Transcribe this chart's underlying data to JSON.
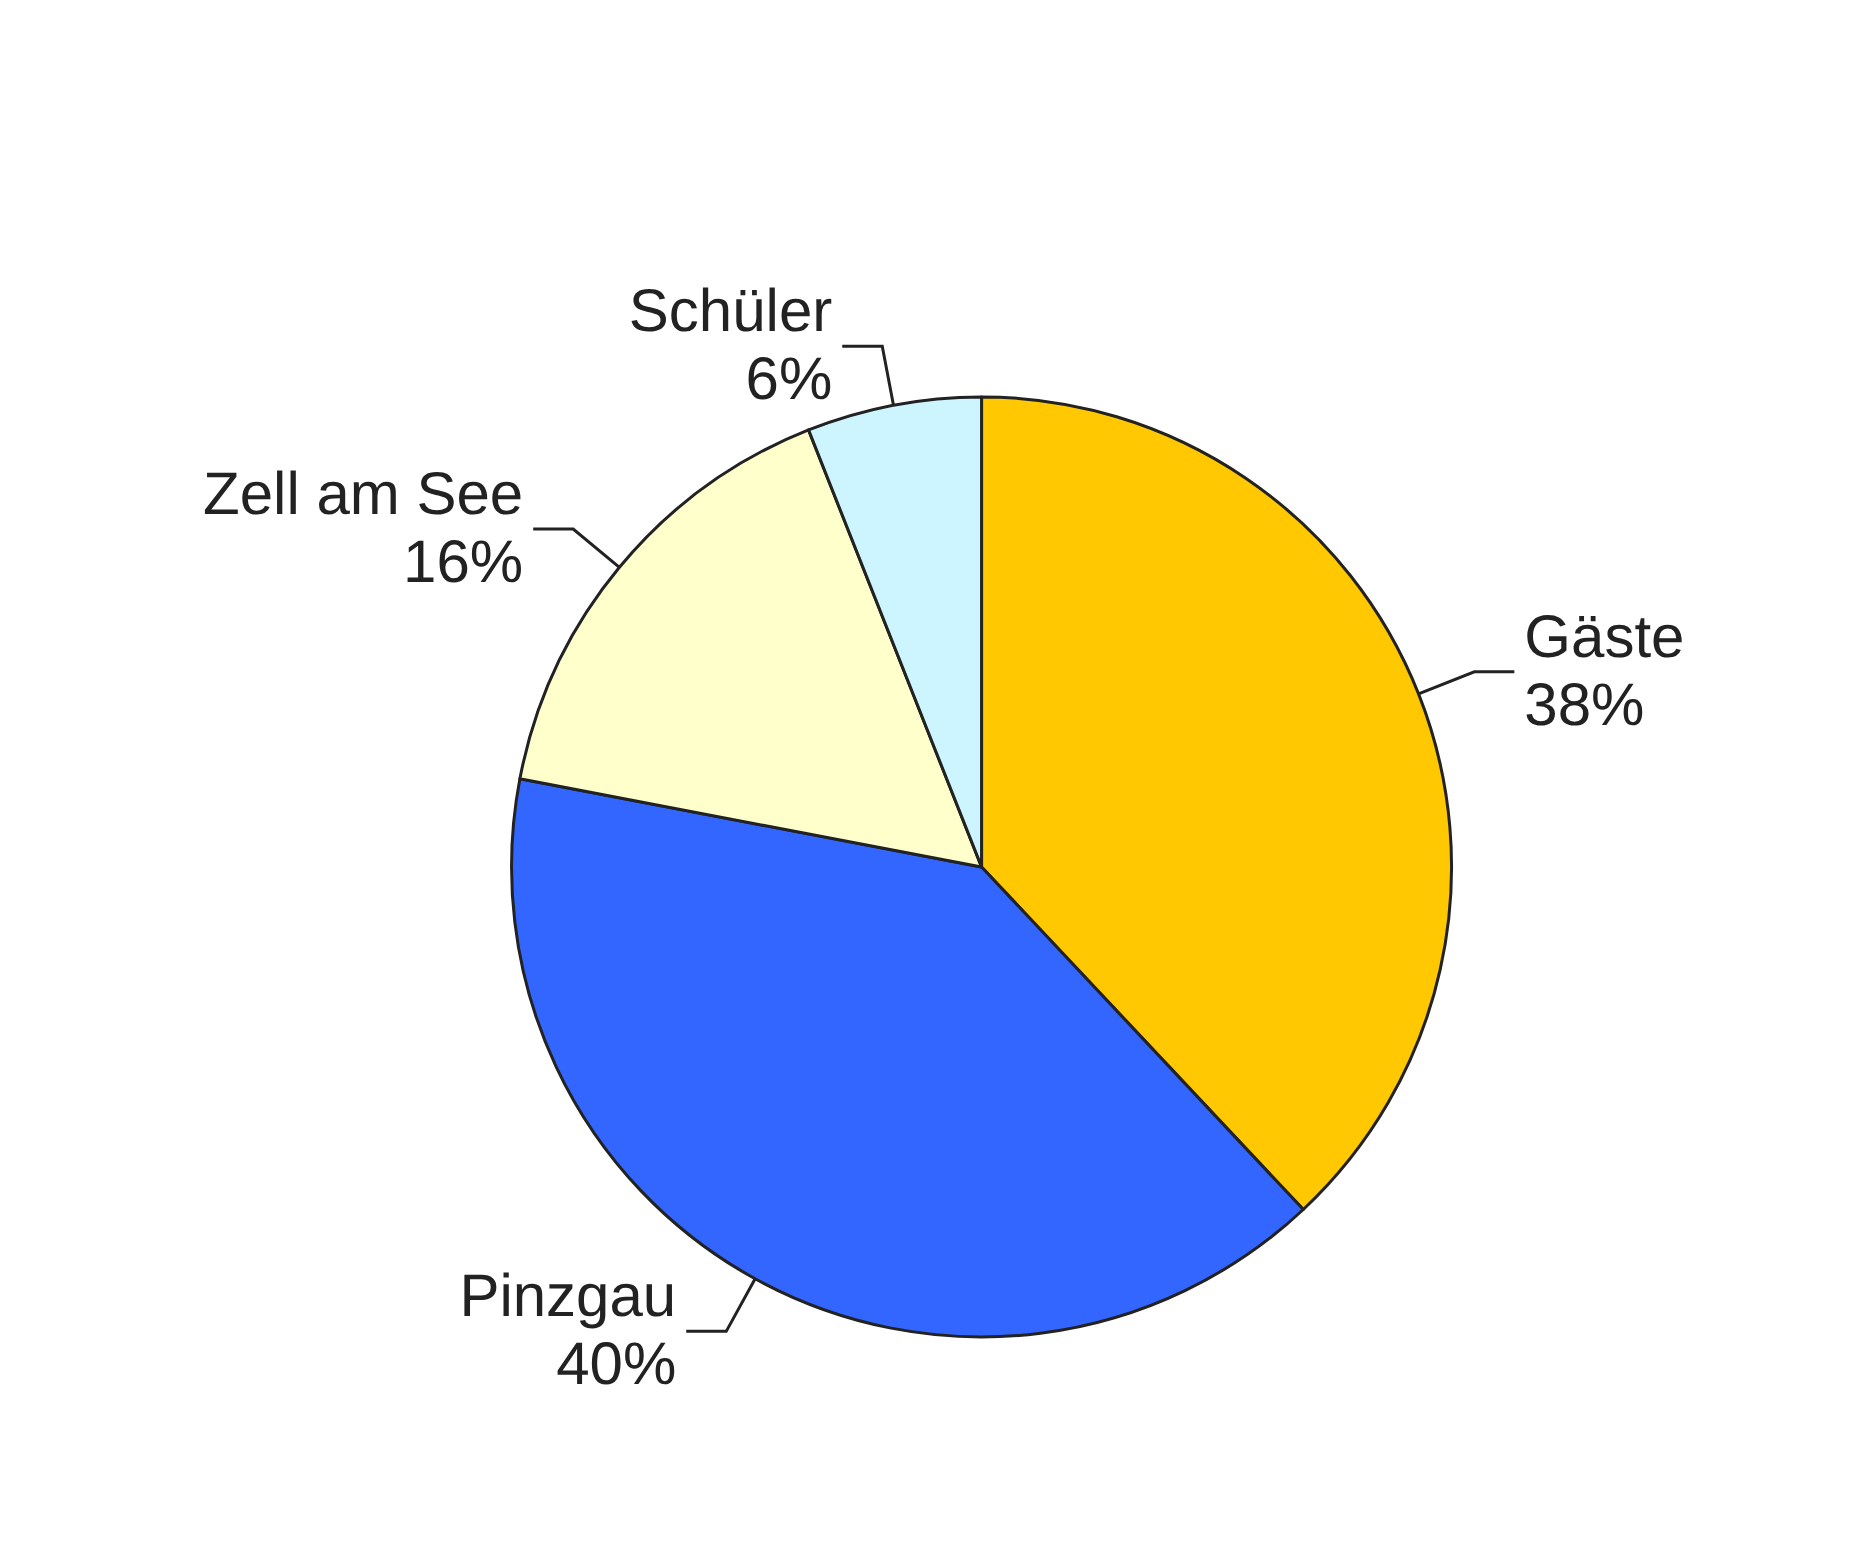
{
  "chart_data": {
    "type": "pie",
    "categories": [
      "Gäste",
      "Pinzgau",
      "Zell am See",
      "Schüler"
    ],
    "values": [
      38,
      40,
      16,
      6
    ],
    "value_labels": [
      "38%",
      "40%",
      "16%",
      "6%"
    ],
    "colors": [
      "#ffc800",
      "#3366ff",
      "#ffffcc",
      "#ccf5ff"
    ],
    "legend": false
  }
}
